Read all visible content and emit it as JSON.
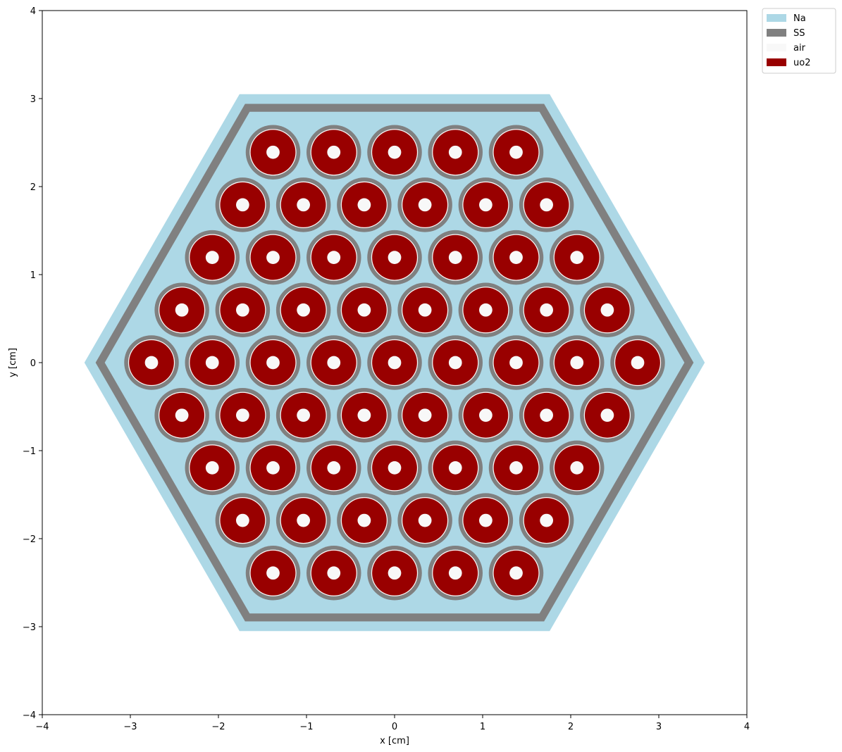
{
  "chart_data": {
    "type": "geometry-plot",
    "xlabel": "x [cm]",
    "ylabel": "y [cm]",
    "xlim": [
      -4,
      4
    ],
    "ylim": [
      -4,
      4
    ],
    "x_ticks": [
      -4,
      -3,
      -2,
      -1,
      0,
      1,
      2,
      3,
      4
    ],
    "y_ticks": [
      -4,
      -3,
      -2,
      -1,
      0,
      1,
      2,
      3,
      4
    ],
    "x_tick_labels": [
      "−4",
      "−3",
      "−2",
      "−1",
      "0",
      "1",
      "2",
      "3",
      "4"
    ],
    "y_tick_labels": [
      "−4",
      "−3",
      "−2",
      "−1",
      "0",
      "1",
      "2",
      "3",
      "4"
    ],
    "grid": false,
    "legend_position": "outside-top-right",
    "legend": [
      {
        "label": "Na",
        "color": "#add8e6"
      },
      {
        "label": "SS",
        "color": "#808080"
      },
      {
        "label": "air",
        "color": "#f8f8f8"
      },
      {
        "label": "uo2",
        "color": "#990000"
      }
    ],
    "assembly": {
      "shape": "flat-top hexagon",
      "outer_sodium_apothem": 3.05,
      "duct_outer_apothem": 2.94,
      "duct_inner_apothem": 2.85,
      "rings": 5,
      "pin_pitch": 0.69,
      "pin_count": 61
    },
    "pin": {
      "clad_outer_radius": 0.31,
      "clad_inner_radius": 0.265,
      "pellet_outer_radius": 0.255,
      "pellet_inner_radius": 0.075
    },
    "colors": {
      "Na": "#add8e6",
      "SS": "#808080",
      "air": "#f8f8f8",
      "uo2": "#990000"
    }
  }
}
